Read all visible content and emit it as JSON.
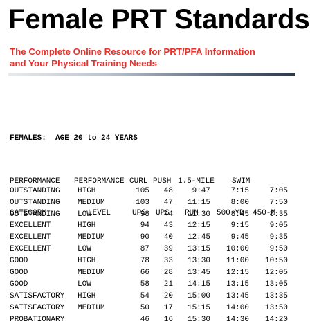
{
  "header": {
    "title": "Female PRT Standards",
    "subtitle_line1": "The Complete Online Resource for PRT/PFA  Information",
    "subtitle_line2": "and Your Physical Training Needs",
    "accent_color": "#e8302b"
  },
  "table": {
    "age_heading": "FEMALES:  AGE 20 to 24 YEARS",
    "header_row1": [
      "PERFORMANCE",
      "PERFORMANCE",
      "CURL",
      "PUSH",
      "1.5-MILE",
      "SWIM",
      ""
    ],
    "header_row2": [
      "CATEGORY",
      "LEVEL",
      "UPS",
      "UPS",
      "RUN",
      "500-YD",
      "450-M"
    ],
    "rows": [
      [
        "OUTSTANDING",
        "HIGH",
        "105",
        "48",
        "9:47",
        "7:15",
        "7:05"
      ],
      [
        "OUTSTANDING",
        "MEDIUM",
        "103",
        "47",
        "11:15",
        "8:00",
        "7:50"
      ],
      [
        "OUTSTANDING",
        "LOW",
        "98",
        "44",
        "11:30",
        "8:45",
        "8:35"
      ],
      [
        "EXCELLENT",
        "HIGH",
        "94",
        "43",
        "12:15",
        "9:15",
        "9:05"
      ],
      [
        "EXCELLENT",
        "MEDIUM",
        "90",
        "40",
        "12:45",
        "9:45",
        "9:35"
      ],
      [
        "EXCELLENT",
        "LOW",
        "87",
        "39",
        "13:15",
        "10:00",
        "9:50"
      ],
      [
        "GOOD",
        "HIGH",
        "78",
        "33",
        "13:30",
        "11:00",
        "10:50"
      ],
      [
        "GOOD",
        "MEDIUM",
        "66",
        "28",
        "13:45",
        "12:15",
        "12:05"
      ],
      [
        "GOOD",
        "LOW",
        "58",
        "21",
        "14:15",
        "13:15",
        "13:05"
      ],
      [
        "SATISFACTORY",
        "HIGH",
        "54",
        "20",
        "15:00",
        "13:45",
        "13:35"
      ],
      [
        "SATISFACTORY",
        "MEDIUM",
        "50",
        "17",
        "15:15",
        "14:00",
        "13:50"
      ],
      [
        "PROBATIONARY",
        "",
        "46",
        "16",
        "15:30",
        "14:30",
        "14:20"
      ]
    ]
  }
}
